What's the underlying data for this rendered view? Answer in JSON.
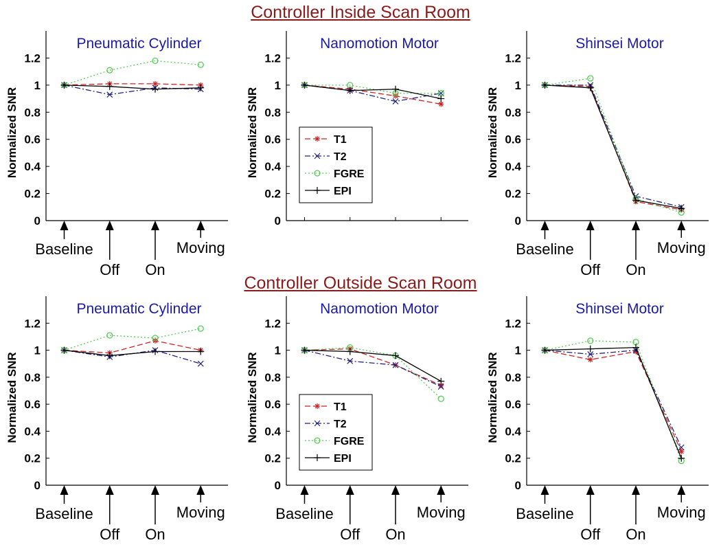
{
  "sections": [
    {
      "title": "Controller Inside Scan Room"
    },
    {
      "title": "Controller Outside Scan Room"
    }
  ],
  "chart_data": [
    {
      "type": "line",
      "section": 0,
      "title": "Pneumatic Cylinder",
      "ylabel": "Normalized SNR",
      "ylim": [
        0,
        1.4
      ],
      "yticks": [
        "0",
        "0.2",
        "0.4",
        "0.6",
        "0.8",
        "1",
        "1.2"
      ],
      "categories": [
        "Baseline",
        "Off",
        "On",
        "Moving"
      ],
      "show_legend": false,
      "series": [
        {
          "name": "T1",
          "values": [
            1.0,
            1.01,
            1.01,
            1.0
          ]
        },
        {
          "name": "T2",
          "values": [
            1.0,
            0.93,
            0.98,
            0.97
          ]
        },
        {
          "name": "FGRE",
          "values": [
            1.0,
            1.11,
            1.18,
            1.15
          ]
        },
        {
          "name": "EPI",
          "values": [
            1.0,
            0.99,
            0.97,
            0.98
          ]
        }
      ]
    },
    {
      "type": "line",
      "section": 0,
      "title": "Nanomotion Motor",
      "ylabel": "Normalized SNR",
      "ylim": [
        0,
        1.4
      ],
      "yticks": [
        "0",
        "0.2",
        "0.4",
        "0.6",
        "0.8",
        "1",
        "1.2"
      ],
      "categories": [
        "",
        "",
        "",
        ""
      ],
      "show_legend": true,
      "series": [
        {
          "name": "T1",
          "values": [
            1.0,
            0.97,
            0.92,
            0.86
          ]
        },
        {
          "name": "T2",
          "values": [
            1.0,
            0.96,
            0.88,
            0.94
          ]
        },
        {
          "name": "FGRE",
          "values": [
            1.0,
            1.0,
            0.94,
            0.94
          ]
        },
        {
          "name": "EPI",
          "values": [
            1.0,
            0.96,
            0.97,
            0.9
          ]
        }
      ]
    },
    {
      "type": "line",
      "section": 0,
      "title": "Shinsei Motor",
      "ylabel": "Normalized SNR",
      "ylim": [
        0,
        1.4
      ],
      "yticks": [
        "0",
        "0.2",
        "0.4",
        "0.6",
        "0.8",
        "1",
        "1.2"
      ],
      "categories": [
        "Baseline",
        "Off",
        "On",
        "Moving"
      ],
      "show_legend": false,
      "series": [
        {
          "name": "T1",
          "values": [
            1.0,
            0.99,
            0.14,
            0.08
          ]
        },
        {
          "name": "T2",
          "values": [
            1.0,
            1.0,
            0.18,
            0.1
          ]
        },
        {
          "name": "FGRE",
          "values": [
            1.0,
            1.05,
            0.16,
            0.06
          ]
        },
        {
          "name": "EPI",
          "values": [
            1.0,
            0.98,
            0.15,
            0.09
          ]
        }
      ]
    },
    {
      "type": "line",
      "section": 1,
      "title": "Pneumatic Cylinder",
      "ylabel": "Normalized SNR",
      "ylim": [
        0,
        1.4
      ],
      "yticks": [
        "0",
        "0.2",
        "0.4",
        "0.6",
        "0.8",
        "1",
        "1.2"
      ],
      "categories": [
        "Baseline",
        "Off",
        "On",
        "Moving"
      ],
      "show_legend": false,
      "series": [
        {
          "name": "T1",
          "values": [
            1.0,
            0.98,
            1.07,
            1.0
          ]
        },
        {
          "name": "T2",
          "values": [
            1.0,
            0.95,
            1.0,
            0.9
          ]
        },
        {
          "name": "FGRE",
          "values": [
            1.0,
            1.11,
            1.09,
            1.16
          ]
        },
        {
          "name": "EPI",
          "values": [
            1.0,
            0.96,
            0.99,
            0.99
          ]
        }
      ]
    },
    {
      "type": "line",
      "section": 1,
      "title": "Nanomotion Motor",
      "ylabel": "Normalized SNR",
      "ylim": [
        0,
        1.4
      ],
      "yticks": [
        "0",
        "0.2",
        "0.4",
        "0.6",
        "0.8",
        "1",
        "1.2"
      ],
      "categories": [
        "Baseline",
        "Off",
        "On",
        "Moving"
      ],
      "show_legend": true,
      "series": [
        {
          "name": "T1",
          "values": [
            1.0,
            1.01,
            0.89,
            0.74
          ]
        },
        {
          "name": "T2",
          "values": [
            1.0,
            0.92,
            0.89,
            0.73
          ]
        },
        {
          "name": "FGRE",
          "values": [
            1.0,
            1.02,
            0.96,
            0.64
          ]
        },
        {
          "name": "EPI",
          "values": [
            1.0,
            0.99,
            0.96,
            0.77
          ]
        }
      ]
    },
    {
      "type": "line",
      "section": 1,
      "title": "Shinsei Motor",
      "ylabel": "Normalized SNR",
      "ylim": [
        0,
        1.4
      ],
      "yticks": [
        "0",
        "0.2",
        "0.4",
        "0.6",
        "0.8",
        "1",
        "1.2"
      ],
      "categories": [
        "Baseline",
        "Off",
        "On",
        "Moving"
      ],
      "show_legend": false,
      "series": [
        {
          "name": "T1",
          "values": [
            1.0,
            0.93,
            0.99,
            0.25
          ]
        },
        {
          "name": "T2",
          "values": [
            1.0,
            0.97,
            1.0,
            0.28
          ]
        },
        {
          "name": "FGRE",
          "values": [
            1.0,
            1.07,
            1.06,
            0.18
          ]
        },
        {
          "name": "EPI",
          "values": [
            1.0,
            1.01,
            1.02,
            0.2
          ]
        }
      ]
    }
  ],
  "styles": {
    "title_color": "#1a1aa6",
    "section_title_color": "#8b1a1a",
    "series_colors": {
      "T1": "#cc2222",
      "T2": "#22227a",
      "FGRE": "#55cc55",
      "EPI": "#000000"
    },
    "series_dash": {
      "T1": "dashed",
      "T2": "dash-dot",
      "FGRE": "dotted",
      "EPI": "solid"
    },
    "series_markers": {
      "T1": "asterisk",
      "T2": "x",
      "FGRE": "circle",
      "EPI": "plus"
    }
  }
}
